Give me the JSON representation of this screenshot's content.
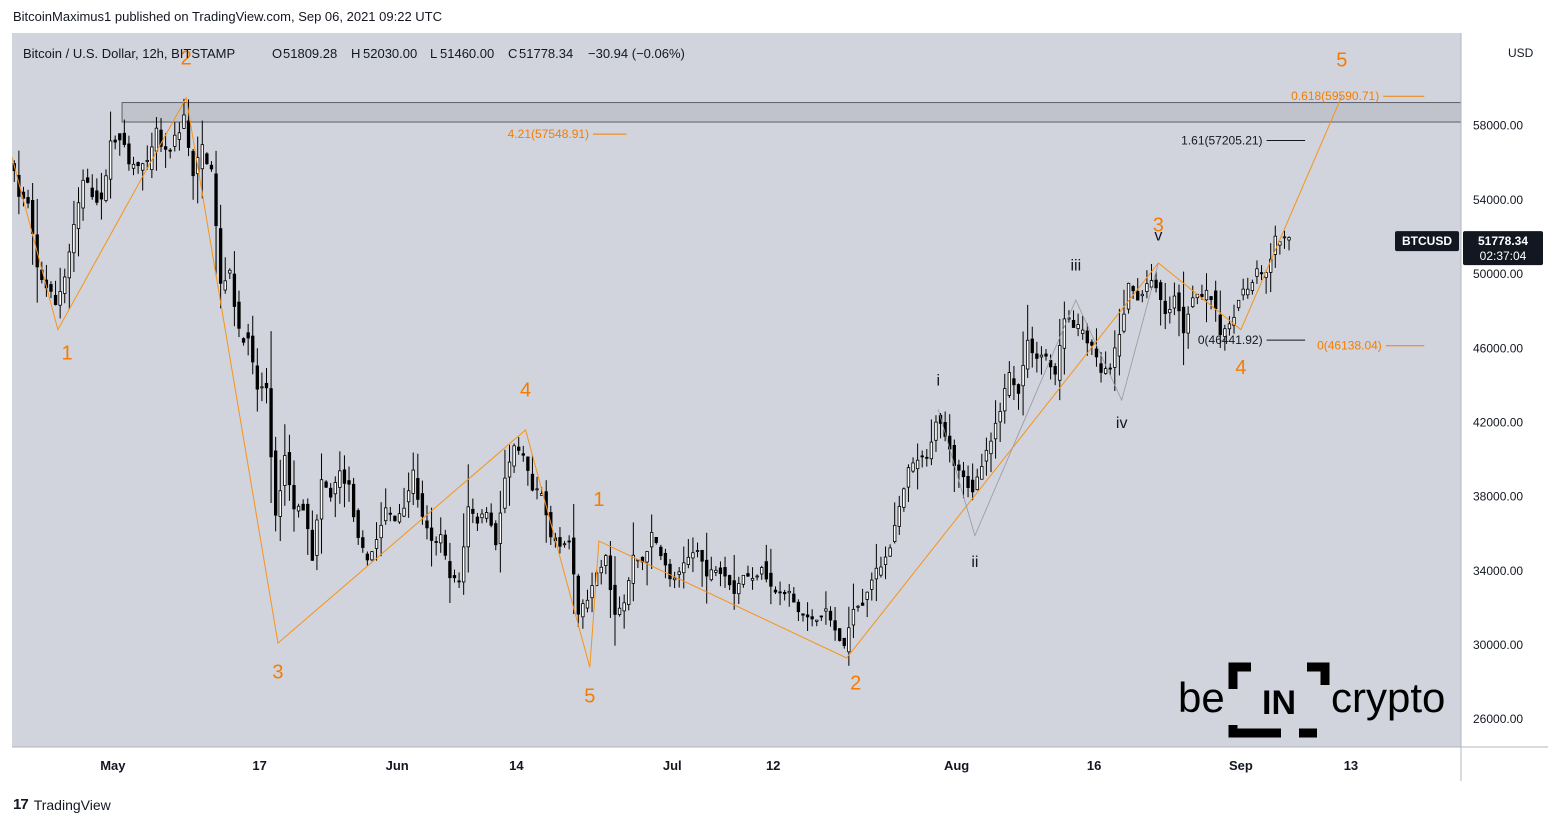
{
  "publisher_line": "BitcoinMaximus1 published on TradingView.com, Sep 06, 2021 09:22 UTC",
  "footer": {
    "logo_glyph": "17",
    "brand": "TradingView"
  },
  "watermark": {
    "left": "be",
    "middle": "IN",
    "right": "crypto"
  },
  "colors": {
    "background": "#d1d4dc",
    "candle": "#000000",
    "wave_orange": "#f7931a",
    "label_orange": "#f57c00",
    "label_black": "#131722",
    "resistance_zone": "#b2b5be",
    "price_tag_bg": "#131722"
  },
  "chart_data": {
    "type": "candlestick",
    "symbol_label": "Bitcoin / U.S. Dollar, 12h, BITSTAMP",
    "ohlc_text": {
      "o_label": "O",
      "o": "51809.28",
      "h_label": "H",
      "h": "52030.00",
      "l_label": "L",
      "l": "51460.00",
      "c_label": "C",
      "c": "51778.34",
      "change": "−30.94 (−0.06%)"
    },
    "currency": "USD",
    "price_tag": {
      "ticker": "BTCUSD",
      "price": "51778.34",
      "countdown": "02:37:04",
      "value": 51778.34
    },
    "y_axis": {
      "range": [
        24500,
        63000
      ],
      "ticks": [
        {
          "value": 58000,
          "label": "58000.00"
        },
        {
          "value": 54000,
          "label": "54000.00"
        },
        {
          "value": 50000,
          "label": "50000.00"
        },
        {
          "value": 46000,
          "label": "46000.00"
        },
        {
          "value": 42000,
          "label": "42000.00"
        },
        {
          "value": 38000,
          "label": "38000.00"
        },
        {
          "value": 34000,
          "label": "34000.00"
        },
        {
          "value": 30000,
          "label": "30000.00"
        },
        {
          "value": 26000,
          "label": "26000.00"
        }
      ]
    },
    "x_axis": {
      "range": [
        "2021-04-20",
        "2021-09-25"
      ],
      "ticks": [
        {
          "date": "2021-05-01",
          "label": "May"
        },
        {
          "date": "2021-05-17",
          "label": "17"
        },
        {
          "date": "2021-06-01",
          "label": "Jun"
        },
        {
          "date": "2021-06-14",
          "label": "14"
        },
        {
          "date": "2021-07-01",
          "label": "Jul"
        },
        {
          "date": "2021-07-12",
          "label": "12"
        },
        {
          "date": "2021-08-01",
          "label": "Aug"
        },
        {
          "date": "2021-08-16",
          "label": "16"
        },
        {
          "date": "2021-09-01",
          "label": "Sep"
        },
        {
          "date": "2021-09-13",
          "label": "13"
        }
      ]
    },
    "price_path": [
      [
        "2021-04-20",
        56300
      ],
      [
        "2021-04-21",
        54300
      ],
      [
        "2021-04-22",
        53700
      ],
      [
        "2021-04-23",
        50300
      ],
      [
        "2021-04-24",
        49300
      ],
      [
        "2021-04-25",
        48400
      ],
      [
        "2021-04-26",
        49900
      ],
      [
        "2021-04-28",
        55000
      ],
      [
        "2021-04-30",
        53800
      ],
      [
        "2021-05-01",
        57100
      ],
      [
        "2021-05-02",
        57500
      ],
      [
        "2021-05-03",
        55900
      ],
      [
        "2021-05-05",
        55800
      ],
      [
        "2021-05-06",
        57600
      ],
      [
        "2021-05-07",
        56400
      ],
      [
        "2021-05-08",
        57300
      ],
      [
        "2021-05-09",
        58400
      ],
      [
        "2021-05-10",
        55200
      ],
      [
        "2021-05-11",
        56800
      ],
      [
        "2021-05-12",
        55600
      ],
      [
        "2021-05-13",
        49400
      ],
      [
        "2021-05-14",
        50200
      ],
      [
        "2021-05-15",
        46800
      ],
      [
        "2021-05-16",
        46400
      ],
      [
        "2021-05-17",
        43800
      ],
      [
        "2021-05-18",
        43900
      ],
      [
        "2021-05-19",
        36800
      ],
      [
        "2021-05-20",
        40200
      ],
      [
        "2021-05-21",
        37300
      ],
      [
        "2021-05-22",
        37500
      ],
      [
        "2021-05-23",
        34700
      ],
      [
        "2021-05-24",
        38700
      ],
      [
        "2021-05-25",
        38100
      ],
      [
        "2021-05-26",
        39300
      ],
      [
        "2021-05-27",
        38500
      ],
      [
        "2021-05-28",
        35600
      ],
      [
        "2021-05-29",
        34600
      ],
      [
        "2021-05-30",
        35700
      ],
      [
        "2021-05-31",
        37300
      ],
      [
        "2021-06-01",
        36700
      ],
      [
        "2021-06-02",
        37600
      ],
      [
        "2021-06-03",
        39200
      ],
      [
        "2021-06-04",
        36800
      ],
      [
        "2021-06-05",
        35500
      ],
      [
        "2021-06-06",
        35800
      ],
      [
        "2021-06-07",
        33600
      ],
      [
        "2021-06-08",
        33400
      ],
      [
        "2021-06-09",
        37400
      ],
      [
        "2021-06-10",
        36700
      ],
      [
        "2021-06-11",
        37300
      ],
      [
        "2021-06-12",
        35500
      ],
      [
        "2021-06-13",
        39000
      ],
      [
        "2021-06-14",
        40500
      ],
      [
        "2021-06-15",
        40100
      ],
      [
        "2021-06-16",
        38300
      ],
      [
        "2021-06-17",
        38100
      ],
      [
        "2021-06-18",
        35800
      ],
      [
        "2021-06-19",
        35500
      ],
      [
        "2021-06-20",
        35600
      ],
      [
        "2021-06-21",
        31700
      ],
      [
        "2021-06-22",
        32500
      ],
      [
        "2021-06-23",
        33700
      ],
      [
        "2021-06-24",
        34700
      ],
      [
        "2021-06-25",
        31600
      ],
      [
        "2021-06-26",
        32200
      ],
      [
        "2021-06-27",
        34700
      ],
      [
        "2021-06-28",
        34500
      ],
      [
        "2021-06-29",
        35900
      ],
      [
        "2021-06-30",
        35000
      ],
      [
        "2021-07-01",
        33500
      ],
      [
        "2021-07-02",
        33800
      ],
      [
        "2021-07-03",
        34700
      ],
      [
        "2021-07-04",
        35300
      ],
      [
        "2021-07-05",
        33700
      ],
      [
        "2021-07-06",
        34200
      ],
      [
        "2021-07-07",
        33900
      ],
      [
        "2021-07-08",
        32900
      ],
      [
        "2021-07-09",
        33800
      ],
      [
        "2021-07-10",
        33500
      ],
      [
        "2021-07-11",
        34300
      ],
      [
        "2021-07-12",
        33100
      ],
      [
        "2021-07-13",
        32700
      ],
      [
        "2021-07-14",
        32800
      ],
      [
        "2021-07-15",
        31800
      ],
      [
        "2021-07-16",
        31400
      ],
      [
        "2021-07-17",
        31500
      ],
      [
        "2021-07-18",
        31800
      ],
      [
        "2021-07-19",
        30800
      ],
      [
        "2021-07-20",
        29800
      ],
      [
        "2021-07-21",
        32100
      ],
      [
        "2021-07-22",
        32300
      ],
      [
        "2021-07-23",
        33600
      ],
      [
        "2021-07-24",
        34300
      ],
      [
        "2021-07-25",
        35400
      ],
      [
        "2021-07-26",
        37300
      ],
      [
        "2021-07-27",
        39400
      ],
      [
        "2021-07-28",
        40000
      ],
      [
        "2021-07-29",
        40000
      ],
      [
        "2021-07-30",
        42200
      ],
      [
        "2021-07-31",
        41500
      ],
      [
        "2021-08-01",
        39900
      ],
      [
        "2021-08-02",
        39200
      ],
      [
        "2021-08-03",
        38200
      ],
      [
        "2021-08-04",
        39700
      ],
      [
        "2021-08-05",
        40900
      ],
      [
        "2021-08-06",
        42800
      ],
      [
        "2021-08-07",
        44600
      ],
      [
        "2021-08-08",
        43800
      ],
      [
        "2021-08-09",
        46300
      ],
      [
        "2021-08-10",
        45600
      ],
      [
        "2021-08-11",
        45600
      ],
      [
        "2021-08-12",
        44400
      ],
      [
        "2021-08-13",
        47800
      ],
      [
        "2021-08-14",
        47100
      ],
      [
        "2021-08-15",
        47000
      ],
      [
        "2021-08-16",
        45900
      ],
      [
        "2021-08-17",
        44700
      ],
      [
        "2021-08-18",
        44800
      ],
      [
        "2021-08-19",
        46700
      ],
      [
        "2021-08-20",
        49300
      ],
      [
        "2021-08-21",
        48800
      ],
      [
        "2021-08-22",
        49300
      ],
      [
        "2021-08-23",
        49500
      ],
      [
        "2021-08-24",
        47700
      ],
      [
        "2021-08-25",
        48900
      ],
      [
        "2021-08-26",
        47000
      ],
      [
        "2021-08-27",
        49000
      ],
      [
        "2021-08-28",
        48900
      ],
      [
        "2021-08-29",
        48800
      ],
      [
        "2021-08-30",
        46900
      ],
      [
        "2021-08-31",
        47100
      ],
      [
        "2021-09-01",
        48800
      ],
      [
        "2021-09-02",
        49200
      ],
      [
        "2021-09-03",
        50000
      ],
      [
        "2021-09-04",
        49900
      ],
      [
        "2021-09-05",
        51800
      ],
      [
        "2021-09-06",
        51778.34
      ]
    ],
    "wave_lines": [
      {
        "color": "orange",
        "points": [
          [
            "2021-04-20",
            56300
          ],
          [
            "2021-04-25",
            47000
          ],
          [
            "2021-05-09",
            59500
          ],
          [
            "2021-05-19",
            30100
          ],
          [
            "2021-06-15",
            41600
          ],
          [
            "2021-06-22",
            28800
          ],
          [
            "2021-06-23",
            35600
          ],
          [
            "2021-07-20",
            29300
          ],
          [
            "2021-08-23",
            50600
          ],
          [
            "2021-09-01",
            47000
          ],
          [
            "2021-09-12",
            59590.71
          ]
        ]
      },
      {
        "color": "black",
        "points": [
          [
            "2021-07-30",
            42700
          ],
          [
            "2021-08-03",
            35900
          ],
          [
            "2021-08-14",
            48600
          ],
          [
            "2021-08-19",
            43200
          ],
          [
            "2021-08-23",
            50600
          ]
        ]
      }
    ],
    "wave_labels": [
      {
        "text": "1",
        "date": "2021-04-26",
        "price": 45400,
        "color": "orange"
      },
      {
        "text": "2",
        "date": "2021-05-09",
        "price": 61300,
        "color": "orange"
      },
      {
        "text": "3",
        "date": "2021-05-19",
        "price": 28200,
        "color": "orange"
      },
      {
        "text": "4",
        "date": "2021-06-15",
        "price": 43400,
        "color": "orange"
      },
      {
        "text": "5",
        "date": "2021-06-22",
        "price": 26900,
        "color": "orange"
      },
      {
        "text": "1",
        "date": "2021-06-23",
        "price": 37500,
        "color": "orange"
      },
      {
        "text": "2",
        "date": "2021-07-21",
        "price": 27600,
        "color": "orange"
      },
      {
        "text": "3",
        "date": "2021-08-23",
        "price": 52300,
        "color": "orange"
      },
      {
        "text": "4",
        "date": "2021-09-01",
        "price": 44600,
        "color": "orange"
      },
      {
        "text": "5",
        "date": "2021-09-12",
        "price": 61200,
        "color": "orange"
      },
      {
        "text": "i",
        "date": "2021-07-30",
        "price": 44000,
        "color": "black"
      },
      {
        "text": "ii",
        "date": "2021-08-03",
        "price": 34200,
        "color": "black"
      },
      {
        "text": "iii",
        "date": "2021-08-14",
        "price": 50200,
        "color": "black"
      },
      {
        "text": "iv",
        "date": "2021-08-19",
        "price": 41700,
        "color": "black"
      },
      {
        "text": "v",
        "date": "2021-08-23",
        "price": 51800,
        "color": "black"
      }
    ],
    "fib_levels": [
      {
        "label": "0.618(59590.71)",
        "price": 59590.71,
        "start": "2021-09-05",
        "end": "2021-09-21",
        "color": "orange"
      },
      {
        "label": "4.21(57548.91)",
        "price": 57548.91,
        "start": "2021-06-13",
        "end": "2021-06-26",
        "color": "orange"
      },
      {
        "label": "1.61(57205.21)",
        "price": 57205.21,
        "start": "2021-08-24",
        "end": "2021-09-08",
        "color": "black"
      },
      {
        "label": "0(46441.92)",
        "price": 46441.92,
        "start": "2021-08-24",
        "end": "2021-09-08",
        "color": "black"
      },
      {
        "label": "0(46138.04)",
        "price": 46138.04,
        "start": "2021-09-06",
        "end": "2021-09-21",
        "color": "orange"
      }
    ],
    "resistance_zone": {
      "low": 58200,
      "high": 59250,
      "start": "2021-05-02",
      "end": "2021-09-25"
    }
  }
}
